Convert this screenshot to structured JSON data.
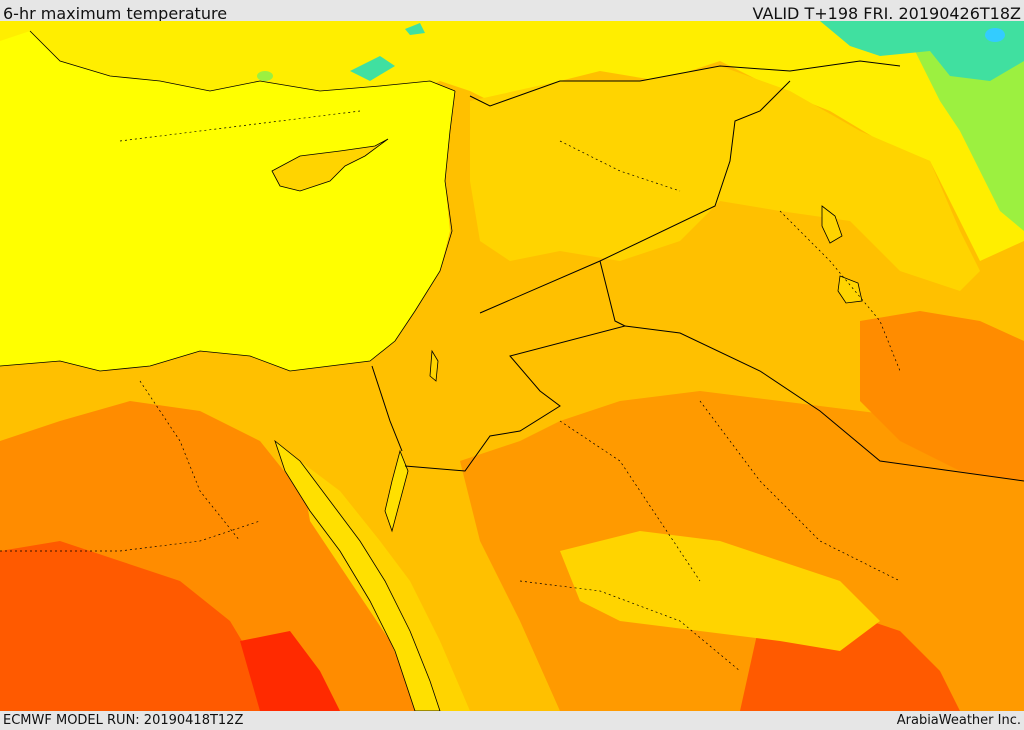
{
  "header": {
    "title": "6-hr maximum temperature",
    "valid_time": "VALID T+198 FRI. 20190426T18Z"
  },
  "footer": {
    "model_run": "ECMWF MODEL RUN: 20190418T12Z",
    "credit": "ArabiaWeather Inc."
  },
  "palette": {
    "sea": "#ffff00",
    "warm_yellow": "#ffd400",
    "light_orange": "#ffb300",
    "orange": "#ff8c00",
    "red_orange": "#ff5a00",
    "red": "#ff2a00",
    "green": "#90ee40",
    "cyan": "#33ddaa",
    "border": "#000000"
  }
}
